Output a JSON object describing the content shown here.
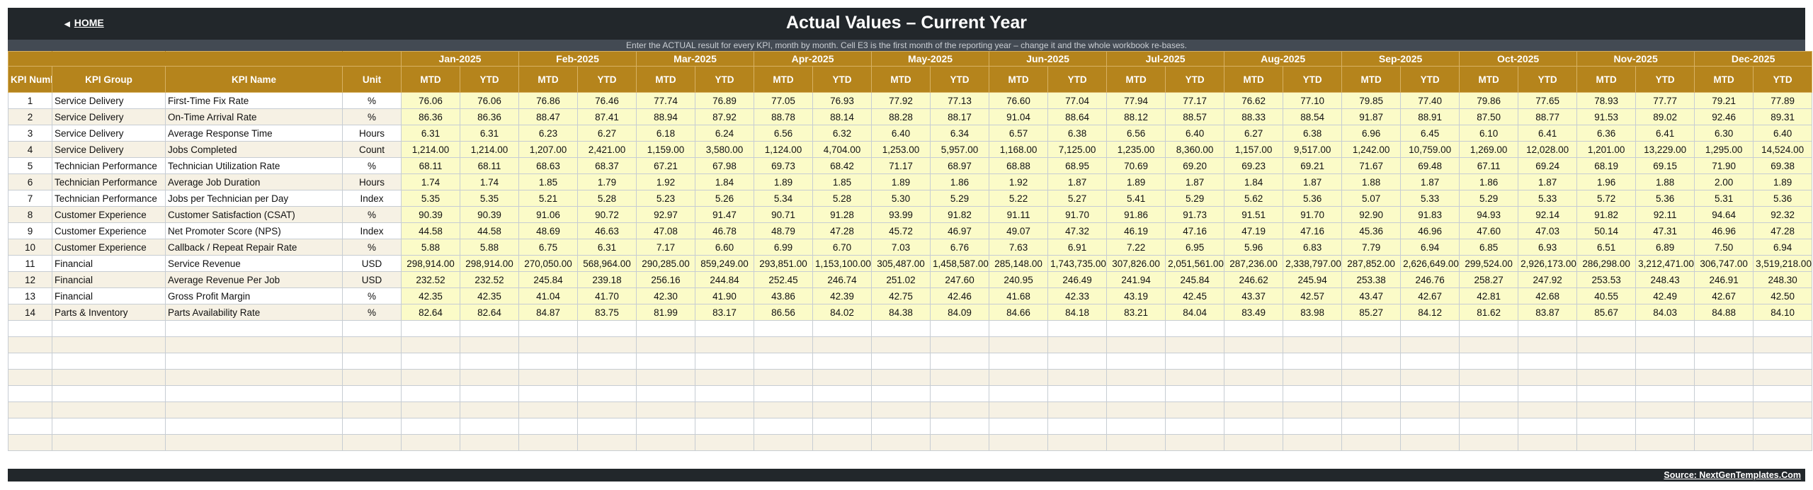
{
  "header": {
    "home_label": "HOME",
    "title": "Actual Values  –  Current Year",
    "subtitle": "Enter the ACTUAL result for every KPI, month by month. Cell E3 is the first month of the reporting year – change it and the whole workbook re-bases."
  },
  "table": {
    "columns": {
      "num": "KPI Number",
      "group": "KPI Group",
      "name": "KPI Name",
      "unit": "Unit",
      "mtd": "MTD",
      "ytd": "YTD"
    },
    "months": [
      "Jan-2025",
      "Feb-2025",
      "Mar-2025",
      "Apr-2025",
      "May-2025",
      "Jun-2025",
      "Jul-2025",
      "Aug-2025",
      "Sep-2025",
      "Oct-2025",
      "Nov-2025",
      "Dec-2025"
    ],
    "rows": [
      {
        "num": "1",
        "group": "Service Delivery",
        "name": "First-Time Fix Rate",
        "unit": "%",
        "values": [
          "76.06",
          "76.06",
          "76.86",
          "76.46",
          "77.74",
          "76.89",
          "77.05",
          "76.93",
          "77.92",
          "77.13",
          "76.60",
          "77.04",
          "77.94",
          "77.17",
          "76.62",
          "77.10",
          "79.85",
          "77.40",
          "79.86",
          "77.65",
          "78.93",
          "77.77",
          "79.21",
          "77.89"
        ]
      },
      {
        "num": "2",
        "group": "Service Delivery",
        "name": "On-Time Arrival Rate",
        "unit": "%",
        "values": [
          "86.36",
          "86.36",
          "88.47",
          "87.41",
          "88.94",
          "87.92",
          "88.78",
          "88.14",
          "88.28",
          "88.17",
          "91.04",
          "88.64",
          "88.12",
          "88.57",
          "88.33",
          "88.54",
          "91.87",
          "88.91",
          "87.50",
          "88.77",
          "91.53",
          "89.02",
          "92.46",
          "89.31"
        ]
      },
      {
        "num": "3",
        "group": "Service Delivery",
        "name": "Average Response Time",
        "unit": "Hours",
        "values": [
          "6.31",
          "6.31",
          "6.23",
          "6.27",
          "6.18",
          "6.24",
          "6.56",
          "6.32",
          "6.40",
          "6.34",
          "6.57",
          "6.38",
          "6.56",
          "6.40",
          "6.27",
          "6.38",
          "6.96",
          "6.45",
          "6.10",
          "6.41",
          "6.36",
          "6.41",
          "6.30",
          "6.40"
        ]
      },
      {
        "num": "4",
        "group": "Service Delivery",
        "name": "Jobs Completed",
        "unit": "Count",
        "values": [
          "1,214.00",
          "1,214.00",
          "1,207.00",
          "2,421.00",
          "1,159.00",
          "3,580.00",
          "1,124.00",
          "4,704.00",
          "1,253.00",
          "5,957.00",
          "1,168.00",
          "7,125.00",
          "1,235.00",
          "8,360.00",
          "1,157.00",
          "9,517.00",
          "1,242.00",
          "10,759.00",
          "1,269.00",
          "12,028.00",
          "1,201.00",
          "13,229.00",
          "1,295.00",
          "14,524.00"
        ]
      },
      {
        "num": "5",
        "group": "Technician Performance",
        "name": "Technician Utilization Rate",
        "unit": "%",
        "values": [
          "68.11",
          "68.11",
          "68.63",
          "68.37",
          "67.21",
          "67.98",
          "69.73",
          "68.42",
          "71.17",
          "68.97",
          "68.88",
          "68.95",
          "70.69",
          "69.20",
          "69.23",
          "69.21",
          "71.67",
          "69.48",
          "67.11",
          "69.24",
          "68.19",
          "69.15",
          "71.90",
          "69.38"
        ]
      },
      {
        "num": "6",
        "group": "Technician Performance",
        "name": "Average Job Duration",
        "unit": "Hours",
        "values": [
          "1.74",
          "1.74",
          "1.85",
          "1.79",
          "1.92",
          "1.84",
          "1.89",
          "1.85",
          "1.89",
          "1.86",
          "1.92",
          "1.87",
          "1.89",
          "1.87",
          "1.84",
          "1.87",
          "1.88",
          "1.87",
          "1.86",
          "1.87",
          "1.96",
          "1.88",
          "2.00",
          "1.89"
        ]
      },
      {
        "num": "7",
        "group": "Technician Performance",
        "name": "Jobs per Technician per Day",
        "unit": "Index",
        "values": [
          "5.35",
          "5.35",
          "5.21",
          "5.28",
          "5.23",
          "5.26",
          "5.34",
          "5.28",
          "5.30",
          "5.29",
          "5.22",
          "5.27",
          "5.41",
          "5.29",
          "5.62",
          "5.36",
          "5.07",
          "5.33",
          "5.29",
          "5.33",
          "5.72",
          "5.36",
          "5.31",
          "5.36"
        ]
      },
      {
        "num": "8",
        "group": "Customer Experience",
        "name": "Customer Satisfaction (CSAT)",
        "unit": "%",
        "values": [
          "90.39",
          "90.39",
          "91.06",
          "90.72",
          "92.97",
          "91.47",
          "90.71",
          "91.28",
          "93.99",
          "91.82",
          "91.11",
          "91.70",
          "91.86",
          "91.73",
          "91.51",
          "91.70",
          "92.90",
          "91.83",
          "94.93",
          "92.14",
          "91.82",
          "92.11",
          "94.64",
          "92.32"
        ]
      },
      {
        "num": "9",
        "group": "Customer Experience",
        "name": "Net Promoter Score (NPS)",
        "unit": "Index",
        "values": [
          "44.58",
          "44.58",
          "48.69",
          "46.63",
          "47.08",
          "46.78",
          "48.79",
          "47.28",
          "45.72",
          "46.97",
          "49.07",
          "47.32",
          "46.19",
          "47.16",
          "47.19",
          "47.16",
          "45.36",
          "46.96",
          "47.60",
          "47.03",
          "50.14",
          "47.31",
          "46.96",
          "47.28"
        ]
      },
      {
        "num": "10",
        "group": "Customer Experience",
        "name": "Callback / Repeat Repair Rate",
        "unit": "%",
        "values": [
          "5.88",
          "5.88",
          "6.75",
          "6.31",
          "7.17",
          "6.60",
          "6.99",
          "6.70",
          "7.03",
          "6.76",
          "7.63",
          "6.91",
          "7.22",
          "6.95",
          "5.96",
          "6.83",
          "7.79",
          "6.94",
          "6.85",
          "6.93",
          "6.51",
          "6.89",
          "7.50",
          "6.94"
        ]
      },
      {
        "num": "11",
        "group": "Financial",
        "name": "Service Revenue",
        "unit": "USD",
        "values": [
          "298,914.00",
          "298,914.00",
          "270,050.00",
          "568,964.00",
          "290,285.00",
          "859,249.00",
          "293,851.00",
          "1,153,100.00",
          "305,487.00",
          "1,458,587.00",
          "285,148.00",
          "1,743,735.00",
          "307,826.00",
          "2,051,561.00",
          "287,236.00",
          "2,338,797.00",
          "287,852.00",
          "2,626,649.00",
          "299,524.00",
          "2,926,173.00",
          "286,298.00",
          "3,212,471.00",
          "306,747.00",
          "3,519,218.00"
        ]
      },
      {
        "num": "12",
        "group": "Financial",
        "name": "Average Revenue Per Job",
        "unit": "USD",
        "values": [
          "232.52",
          "232.52",
          "245.84",
          "239.18",
          "256.16",
          "244.84",
          "252.45",
          "246.74",
          "251.02",
          "247.60",
          "240.95",
          "246.49",
          "241.94",
          "245.84",
          "246.62",
          "245.94",
          "253.38",
          "246.76",
          "258.27",
          "247.92",
          "253.53",
          "248.43",
          "246.91",
          "248.30"
        ]
      },
      {
        "num": "13",
        "group": "Financial",
        "name": "Gross Profit Margin",
        "unit": "%",
        "values": [
          "42.35",
          "42.35",
          "41.04",
          "41.70",
          "42.30",
          "41.90",
          "43.86",
          "42.39",
          "42.75",
          "42.46",
          "41.68",
          "42.33",
          "43.19",
          "42.45",
          "43.37",
          "42.57",
          "43.47",
          "42.67",
          "42.81",
          "42.68",
          "40.55",
          "42.49",
          "42.67",
          "42.50"
        ]
      },
      {
        "num": "14",
        "group": "Parts & Inventory",
        "name": "Parts Availability Rate",
        "unit": "%",
        "values": [
          "82.64",
          "82.64",
          "84.87",
          "83.75",
          "81.99",
          "83.17",
          "86.56",
          "84.02",
          "84.38",
          "84.09",
          "84.66",
          "84.18",
          "83.21",
          "84.04",
          "83.49",
          "83.98",
          "85.27",
          "84.12",
          "81.62",
          "83.87",
          "85.67",
          "84.03",
          "84.88",
          "84.10"
        ]
      }
    ],
    "empty_rows": 8
  },
  "footer": {
    "source": "Source: NextGenTemplates.Com"
  },
  "colors": {
    "header_bg": "#b5841c",
    "title_bg": "#22272b",
    "value_bg": "#fbfbc8"
  }
}
